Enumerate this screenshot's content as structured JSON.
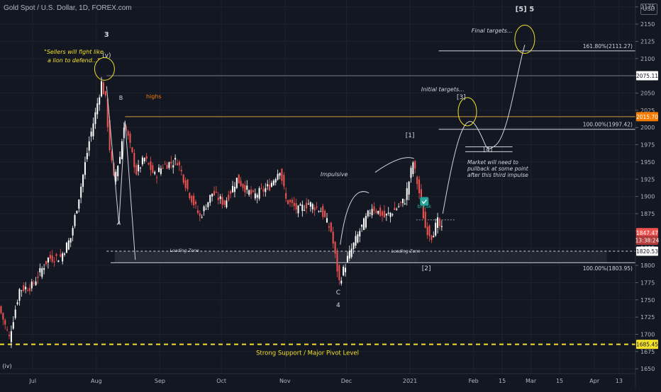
{
  "header": {
    "title": "Gold Spot / U.S. Dollar, 1D, FOREX.com"
  },
  "currency_badge": "USD",
  "colors": {
    "background": "#131722",
    "up": "#ffffff",
    "down": "#ef5350",
    "yellow": "#f3e02b",
    "orange_line": "#c99b3d",
    "grid": "#1e222d",
    "axis_text": "#b2b5be"
  },
  "chart_data": {
    "type": "candlestick",
    "title": "Gold Spot / U.S. Dollar, 1D, FOREX.com",
    "xlabel": "",
    "ylabel": "",
    "ylim": [
      1643,
      2185
    ],
    "y_ticks": [
      1650,
      1675,
      1700,
      1725,
      1750,
      1775,
      1800,
      1825,
      1850,
      1875,
      1900,
      1925,
      1950,
      1975,
      2000,
      2025,
      2050,
      2075,
      2100,
      2125,
      2150,
      2175
    ],
    "x_ticks": [
      {
        "label": "Jul",
        "day": 16
      },
      {
        "label": "Aug",
        "day": 47
      },
      {
        "label": "Sep",
        "day": 78
      },
      {
        "label": "Oct",
        "day": 108
      },
      {
        "label": "Nov",
        "day": 139
      },
      {
        "label": "Dec",
        "day": 169
      },
      {
        "label": "2021",
        "day": 200
      },
      {
        "label": "Feb",
        "day": 231
      },
      {
        "label": "15",
        "day": 245
      },
      {
        "label": "Mar",
        "day": 259
      },
      {
        "label": "15",
        "day": 273
      },
      {
        "label": "Apr",
        "day": 290
      },
      {
        "label": "13",
        "day": 302
      }
    ],
    "x_range_days": [
      0,
      310
    ],
    "candle_range": {
      "start_day": 0,
      "end_day": 216
    },
    "price_path": [
      [
        0,
        1740
      ],
      [
        5,
        1695
      ],
      [
        10,
        1765
      ],
      [
        16,
        1770
      ],
      [
        24,
        1810
      ],
      [
        30,
        1812
      ],
      [
        35,
        1840
      ],
      [
        40,
        1915
      ],
      [
        44,
        1980
      ],
      [
        47,
        2020
      ],
      [
        50,
        2065
      ],
      [
        52,
        2040
      ],
      [
        54,
        1970
      ],
      [
        56,
        1925
      ],
      [
        59,
        1958
      ],
      [
        61,
        2005
      ],
      [
        63,
        1985
      ],
      [
        67,
        1935
      ],
      [
        71,
        1955
      ],
      [
        76,
        1930
      ],
      [
        80,
        1945
      ],
      [
        87,
        1952
      ],
      [
        92,
        1910
      ],
      [
        98,
        1870
      ],
      [
        104,
        1905
      ],
      [
        110,
        1890
      ],
      [
        116,
        1925
      ],
      [
        124,
        1900
      ],
      [
        132,
        1915
      ],
      [
        137,
        1940
      ],
      [
        140,
        1895
      ],
      [
        146,
        1880
      ],
      [
        151,
        1890
      ],
      [
        157,
        1880
      ],
      [
        162,
        1850
      ],
      [
        166,
        1776
      ],
      [
        170,
        1810
      ],
      [
        176,
        1850
      ],
      [
        182,
        1885
      ],
      [
        188,
        1870
      ],
      [
        193,
        1880
      ],
      [
        198,
        1895
      ],
      [
        202,
        1950
      ],
      [
        205,
        1905
      ],
      [
        208,
        1855
      ],
      [
        211,
        1843
      ],
      [
        214,
        1863
      ],
      [
        216,
        1850
      ]
    ],
    "price_labels": [
      {
        "value": 2075.11,
        "label": "2075.11",
        "style": "white"
      },
      {
        "value": 2015.7,
        "label": "2015.70",
        "style": "orange"
      },
      {
        "value": 1847.47,
        "label": "1847.47",
        "style": "red"
      },
      {
        "value": 1836.5,
        "label": "13:38:24",
        "style": "red-dark"
      },
      {
        "value": 1820.53,
        "label": "1820.53",
        "style": "white"
      },
      {
        "value": 1685.45,
        "label": "1685.45",
        "style": "yellow"
      }
    ],
    "levels": [
      {
        "value": 2111.27,
        "label": "161.80%(2111.27)"
      },
      {
        "value": 1997.42,
        "label": "100.00%(1997.42)"
      },
      {
        "value": 1803.95,
        "label": "100.00%(1803.95)"
      },
      {
        "value": 1685.45,
        "label": "Strong Support / Major Pivot Level"
      }
    ],
    "annotations": {
      "wave_3": "3",
      "wave_v": "(v)",
      "quote": "\"Sellers will fight like a lion to defend...\"",
      "wave_b": "B",
      "highs": "highs",
      "wave_a": "A",
      "loading_zone_left": "Loading Zone",
      "loading_zone_right": "Loading Zone",
      "wave_c": "C",
      "wave_4": "4",
      "impulsive": "Impulsive",
      "wave_1": "[1]",
      "break": "break",
      "wave_2": "[2]",
      "initial_targets": "Initial targets...",
      "wave_3b": "[3]",
      "wave_4b": "[4]",
      "pullback_note": "Market will need to pullback at some point after this third impulse",
      "final_targets": "Final targets...",
      "wave_5": "[5] 5",
      "wave_iv": "(iv)"
    }
  }
}
